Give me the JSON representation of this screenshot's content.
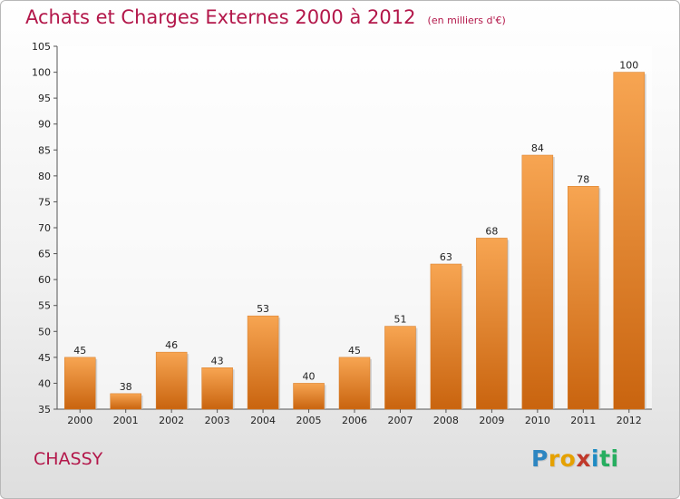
{
  "header": {
    "title": "Achats et Charges Externes 2000 à 2012",
    "unit": "(en milliers d'€)"
  },
  "commune": "CHASSY",
  "logo": {
    "letters": [
      "P",
      "r",
      "o",
      "x",
      "i",
      "t",
      "i"
    ],
    "colors": [
      "#2e86c1",
      "#e5a100",
      "#e5a100",
      "#c0392b",
      "#1e8bc3",
      "#27ae60",
      "#27ae60"
    ]
  },
  "chart_data": {
    "type": "bar",
    "title": "Achats et Charges Externes 2000 à 2012",
    "categories": [
      "2000",
      "2001",
      "2002",
      "2003",
      "2004",
      "2005",
      "2006",
      "2007",
      "2008",
      "2009",
      "2010",
      "2011",
      "2012"
    ],
    "values": [
      45,
      38,
      46,
      43,
      53,
      40,
      45,
      51,
      63,
      68,
      84,
      78,
      100
    ],
    "ylim": [
      35,
      105
    ],
    "yticks": [
      35,
      40,
      45,
      50,
      55,
      60,
      65,
      70,
      75,
      80,
      85,
      90,
      95,
      100,
      105
    ],
    "grid": false,
    "colors": {
      "bar_top": "#f7a552",
      "bar_bottom": "#c9640f"
    }
  }
}
